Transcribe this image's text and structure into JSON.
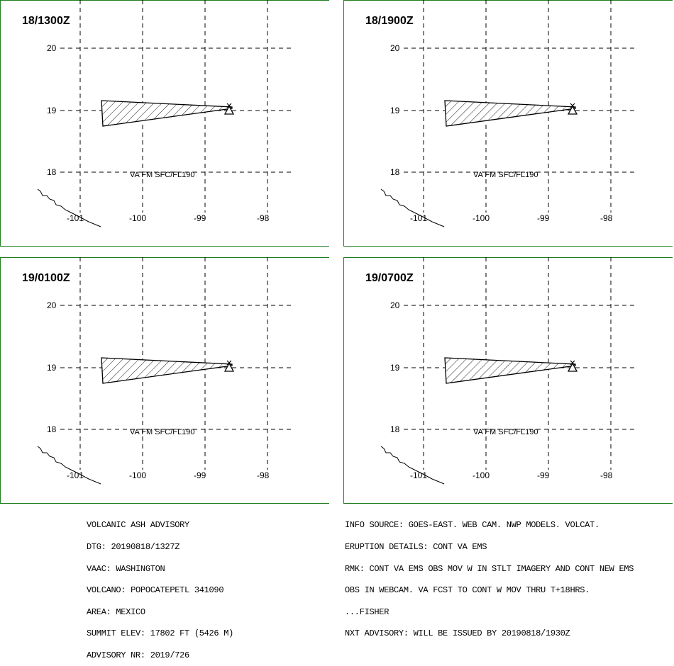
{
  "panels": [
    {
      "time": "18/1300Z",
      "ash_label": "VA FM SFC/FL190"
    },
    {
      "time": "18/1900Z",
      "ash_label": "VA FM SFC/FL190"
    },
    {
      "time": "19/0100Z",
      "ash_label": "VA FM SFC/FL190"
    },
    {
      "time": "19/0700Z",
      "ash_label": "VA FM SFC/FL190"
    }
  ],
  "axes": {
    "lon_ticks": [
      "-101",
      "-100",
      "-99",
      "-98"
    ],
    "lat_ticks": [
      "20",
      "19",
      "18"
    ]
  },
  "advisory_left": [
    "VOLCANIC ASH ADVISORY",
    "DTG: 20190818/1327Z",
    "VAAC: WASHINGTON",
    "VOLCANO: POPOCATEPETL 341090",
    "AREA: MEXICO",
    "SUMMIT ELEV: 17802 FT (5426 M)",
    "ADVISORY NR: 2019/726"
  ],
  "advisory_right": [
    "INFO SOURCE: GOES-EAST. WEB CAM. NWP MODELS. VOLCAT.",
    "ERUPTION DETAILS: CONT VA EMS",
    "RMK: CONT VA EMS OBS MOV W IN STLT IMAGERY AND CONT NEW EMS",
    "OBS IN WEBCAM. VA FCST TO CONT W MOV THRU T+18HRS.",
    "...FISHER",
    "NXT ADVISORY: WILL BE ISSUED BY 20190818/1930Z"
  ],
  "colors": {
    "frame": "#1e7d1e",
    "ink": "#000000",
    "background": "#ffffff"
  },
  "icons": {
    "volcano": "volcano-triangle-icon"
  }
}
